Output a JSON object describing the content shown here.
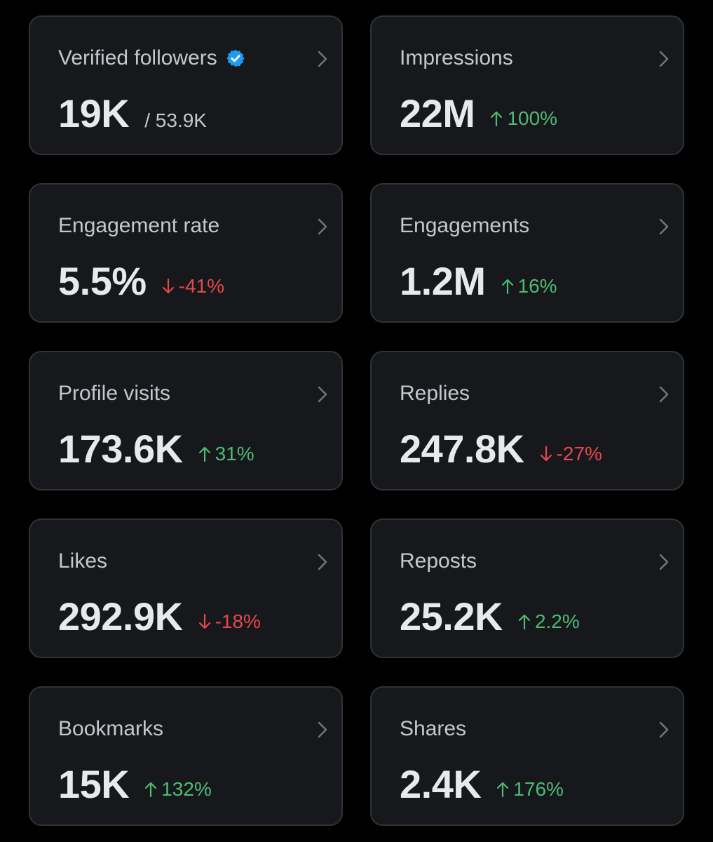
{
  "colors": {
    "background": "#000000",
    "card_bg": "#16181c",
    "card_border": "#2f3336",
    "title": "#c4c8cc",
    "value": "#e7e9ea",
    "positive": "#4fba74",
    "negative": "#e5484d",
    "verified": "#1d9bf0"
  },
  "cards": [
    {
      "title": "Verified followers",
      "value": "19K",
      "sub": "/ 53.9K",
      "icon": "verified-badge-icon"
    },
    {
      "title": "Impressions",
      "value": "22M",
      "change": "100%",
      "direction": "up"
    },
    {
      "title": "Engagement rate",
      "value": "5.5%",
      "change": "-41%",
      "direction": "down"
    },
    {
      "title": "Engagements",
      "value": "1.2M",
      "change": "16%",
      "direction": "up"
    },
    {
      "title": "Profile visits",
      "value": "173.6K",
      "change": "31%",
      "direction": "up"
    },
    {
      "title": "Replies",
      "value": "247.8K",
      "change": "-27%",
      "direction": "down"
    },
    {
      "title": "Likes",
      "value": "292.9K",
      "change": "-18%",
      "direction": "down"
    },
    {
      "title": "Reposts",
      "value": "25.2K",
      "change": "2.2%",
      "direction": "up"
    },
    {
      "title": "Bookmarks",
      "value": "15K",
      "change": "132%",
      "direction": "up"
    },
    {
      "title": "Shares",
      "value": "2.4K",
      "change": "176%",
      "direction": "up"
    }
  ]
}
